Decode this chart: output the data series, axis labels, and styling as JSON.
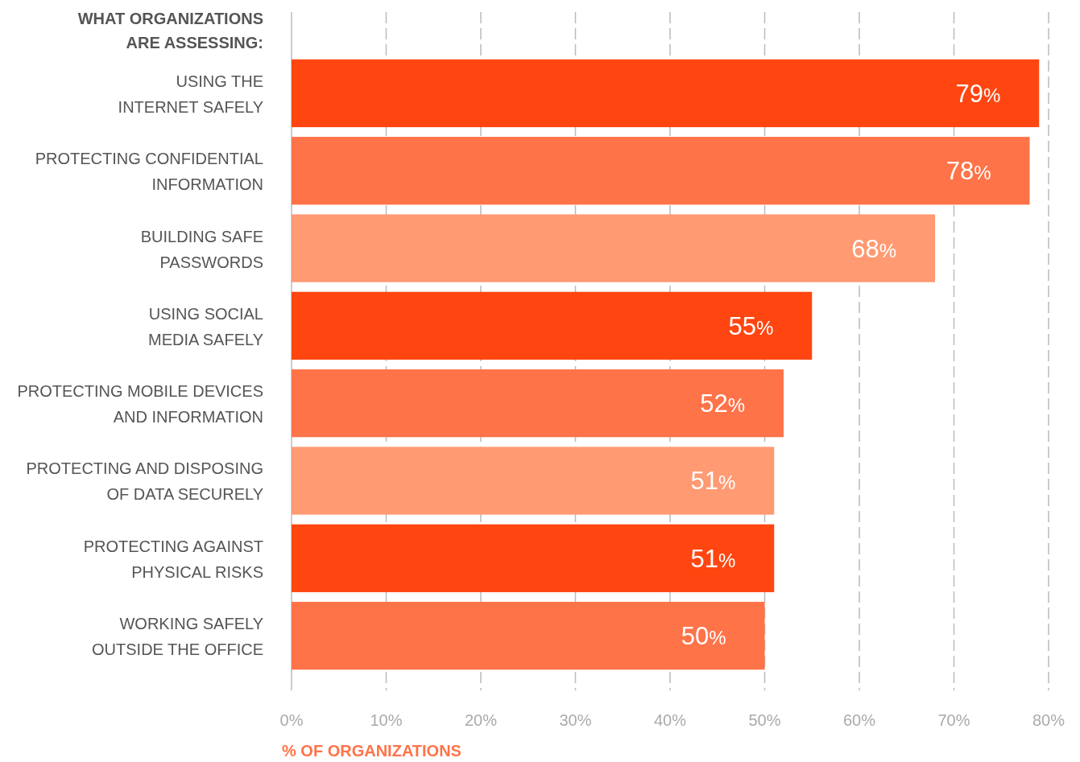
{
  "chart_data": {
    "type": "bar",
    "orientation": "horizontal",
    "ylabel": "WHAT ORGANIZATIONS\nARE ASSESSING:",
    "xlabel": "% OF ORGANIZATIONS",
    "categories": [
      "USING THE\nINTERNET SAFELY",
      "PROTECTING CONFIDENTIAL\nINFORMATION",
      "BUILDING SAFE\nPASSWORDS",
      "USING SOCIAL\nMEDIA SAFELY",
      "PROTECTING MOBILE DEVICES\nAND INFORMATION",
      "PROTECTING AND DISPOSING\nOF DATA SECURELY",
      "PROTECTING AGAINST\nPHYSICAL RISKS",
      "WORKING SAFELY\nOUTSIDE THE OFFICE"
    ],
    "values": [
      79,
      78,
      68,
      55,
      52,
      51,
      51,
      50
    ],
    "colors": [
      "#ff4611",
      "#ff7349",
      "#ff9a72",
      "#ff4611",
      "#ff7349",
      "#ff9a72",
      "#ff4611",
      "#ff7349"
    ],
    "value_labels": [
      "79%",
      "78%",
      "68%",
      "55%",
      "52%",
      "51%",
      "51%",
      "50%"
    ],
    "xlim": [
      0,
      80
    ],
    "xticks": [
      {
        "value": 0,
        "label": "0%"
      },
      {
        "value": 10,
        "label": "10%"
      },
      {
        "value": 20,
        "label": "20%"
      },
      {
        "value": 30,
        "label": "30%"
      },
      {
        "value": 40,
        "label": "40%"
      },
      {
        "value": 50,
        "label": "50%"
      },
      {
        "value": 60,
        "label": "60%"
      },
      {
        "value": 70,
        "label": "70%"
      },
      {
        "value": 80,
        "label": "80%"
      }
    ],
    "grid": "x"
  }
}
